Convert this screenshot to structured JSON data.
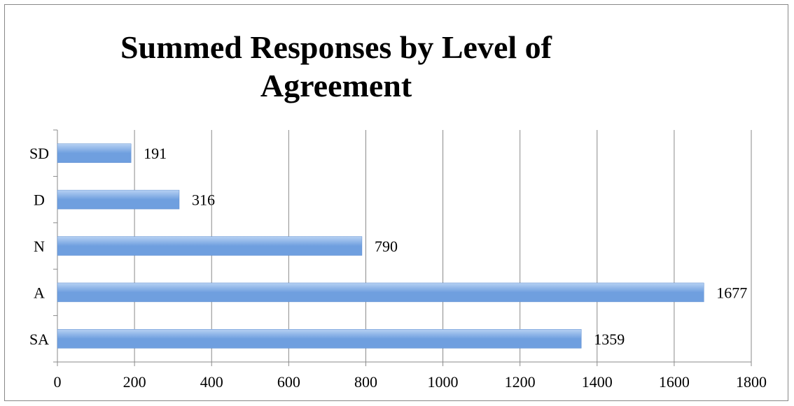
{
  "chart_data": {
    "type": "bar",
    "orientation": "horizontal",
    "title_lines": [
      "Summed Responses by Level of",
      "Agreement"
    ],
    "categories": [
      "SD",
      "D",
      "N",
      "A",
      "SA"
    ],
    "values": [
      191,
      316,
      790,
      1677,
      1359
    ],
    "data_labels": [
      "191",
      "316",
      "790",
      "1677",
      "1359"
    ],
    "x_ticks": [
      "0",
      "200",
      "400",
      "600",
      "800",
      "1000",
      "1200",
      "1400",
      "1600",
      "1800"
    ],
    "xlim": [
      0,
      1800
    ],
    "xlabel": "",
    "ylabel": "",
    "grid": "vertical",
    "legend": "none",
    "bar_color": "#6f9fdf",
    "bar_color_light": "#b7d1f3",
    "grid_color": "#8a8a8a"
  }
}
